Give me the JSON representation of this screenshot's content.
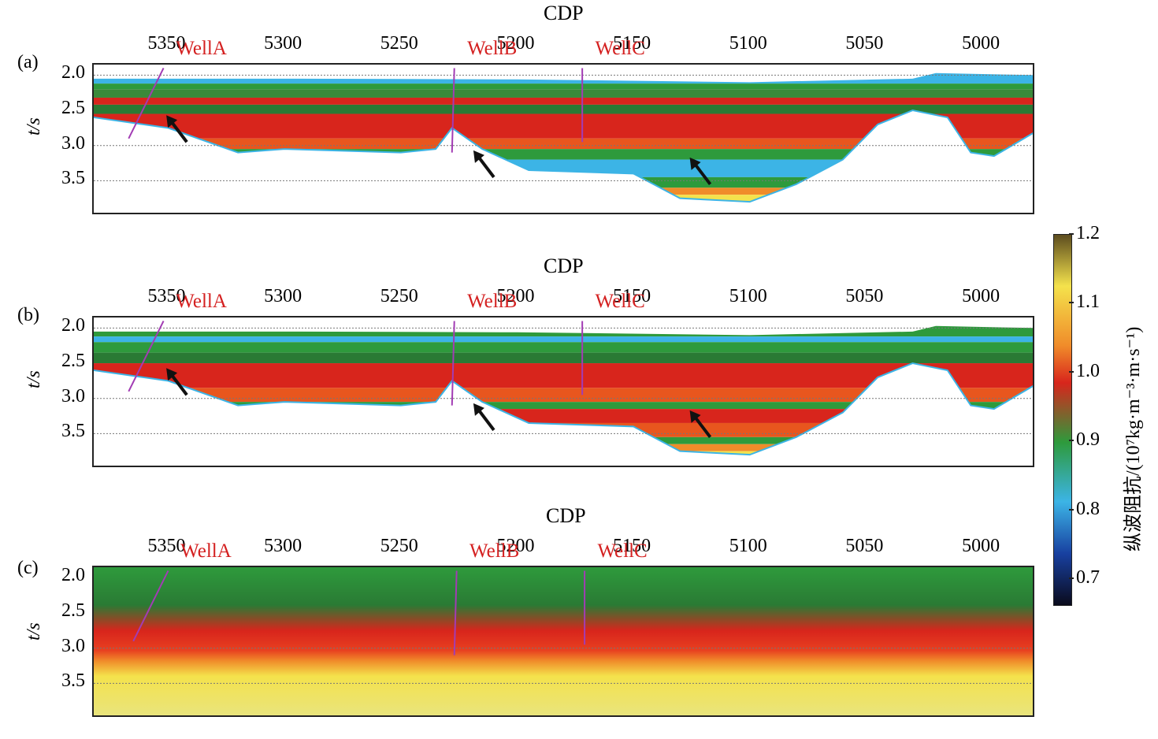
{
  "chart_data": [
    {
      "type": "heatmap",
      "panel_label": "(a)",
      "xlabel": "CDP",
      "ylabel_var": "t",
      "ylabel_unit": "/s",
      "x_ticks": [
        "5350",
        "5300",
        "5250",
        "5200",
        "5150",
        "5100",
        "5050",
        "5000"
      ],
      "y_ticks": [
        "2.0",
        "2.5",
        "3.0",
        "3.5"
      ],
      "xlim": [
        5382,
        4977
      ],
      "ylim": [
        1.85,
        4.0
      ],
      "wells": [
        {
          "name": "WellA",
          "cdp_top": 5352,
          "cdp_bottom": 5367,
          "t_top": 1.9,
          "t_bottom": 2.9
        },
        {
          "name": "WellB",
          "cdp_top": 5227,
          "cdp_bottom": 5228,
          "t_top": 1.9,
          "t_bottom": 3.1
        },
        {
          "name": "WellC",
          "cdp_top": 5172,
          "cdp_bottom": 5172,
          "t_top": 1.9,
          "t_bottom": 2.95
        }
      ],
      "arrows": [
        {
          "cdp": 5342,
          "t": 2.95
        },
        {
          "cdp": 5210,
          "t": 3.45
        },
        {
          "cdp": 5117,
          "t": 3.55
        }
      ],
      "gridlines_y": [
        2.0,
        3.0,
        3.5
      ]
    },
    {
      "type": "heatmap",
      "panel_label": "(b)",
      "xlabel": "CDP",
      "ylabel_var": "t",
      "ylabel_unit": "/s",
      "x_ticks": [
        "5350",
        "5300",
        "5250",
        "5200",
        "5150",
        "5100",
        "5050",
        "5000"
      ],
      "y_ticks": [
        "2.0",
        "2.5",
        "3.0",
        "3.5"
      ],
      "xlim": [
        5382,
        4977
      ],
      "ylim": [
        1.85,
        4.0
      ],
      "wells": [
        {
          "name": "WellA",
          "cdp_top": 5352,
          "cdp_bottom": 5367,
          "t_top": 1.9,
          "t_bottom": 2.9
        },
        {
          "name": "WellB",
          "cdp_top": 5227,
          "cdp_bottom": 5228,
          "t_top": 1.9,
          "t_bottom": 3.1
        },
        {
          "name": "WellC",
          "cdp_top": 5172,
          "cdp_bottom": 5172,
          "t_top": 1.9,
          "t_bottom": 2.95
        }
      ],
      "arrows": [
        {
          "cdp": 5342,
          "t": 2.95
        },
        {
          "cdp": 5210,
          "t": 3.45
        },
        {
          "cdp": 5117,
          "t": 3.55
        }
      ],
      "gridlines_y": [
        2.0,
        3.0,
        3.5
      ]
    },
    {
      "type": "heatmap",
      "panel_label": "(c)",
      "xlabel": "CDP",
      "ylabel_var": "t",
      "ylabel_unit": "/s",
      "x_ticks": [
        "5350",
        "5300",
        "5250",
        "5200",
        "5150",
        "5100",
        "5050",
        "5000"
      ],
      "y_ticks": [
        "2.0",
        "2.5",
        "3.0",
        "3.5"
      ],
      "xlim": [
        5382,
        4977
      ],
      "ylim": [
        1.85,
        4.0
      ],
      "wells": [
        {
          "name": "WellA",
          "cdp_top": 5350,
          "cdp_bottom": 5365,
          "t_top": 1.9,
          "t_bottom": 2.9
        },
        {
          "name": "WellB",
          "cdp_top": 5226,
          "cdp_bottom": 5227,
          "t_top": 1.9,
          "t_bottom": 3.1
        },
        {
          "name": "WellC",
          "cdp_top": 5171,
          "cdp_bottom": 5171,
          "t_top": 1.9,
          "t_bottom": 2.95
        }
      ],
      "arrows": [],
      "gridlines_y": [
        3.0,
        3.5
      ]
    }
  ],
  "colorbar": {
    "label": "纵波阻抗/(10⁷kg·m⁻³·m·s⁻¹)",
    "ticks": [
      "1.2",
      "1.1",
      "1.0",
      "0.9",
      "0.8",
      "0.7"
    ],
    "range": [
      0.66,
      1.2
    ],
    "colors": {
      "top": "#5a4a1e",
      "yellow": "#f4e24c",
      "orange": "#f08c2a",
      "red": "#d8251c",
      "green": "#2e9a3c",
      "cyan": "#3cb4e6",
      "blue": "#1840a0",
      "bottom": "#0a0a1a"
    }
  }
}
